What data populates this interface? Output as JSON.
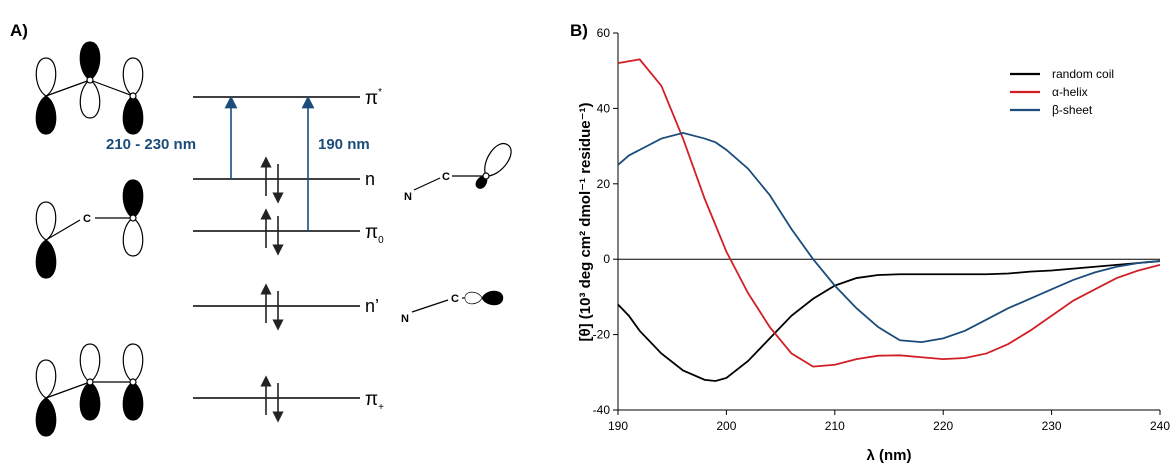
{
  "panel_a": {
    "label": "A)",
    "levels": [
      {
        "symbol": "π",
        "sup": "*"
      },
      {
        "symbol": "n"
      },
      {
        "symbol": "π",
        "sub": "0"
      },
      {
        "symbol": "n’"
      },
      {
        "symbol": "π",
        "sub": "+"
      }
    ],
    "transitions": [
      "210 - 230 nm",
      "190 nm"
    ],
    "atoms": {
      "c_pi0": "C",
      "n_n": "N",
      "c_n": "C",
      "n_nprime": "N",
      "c_nprime": "C"
    }
  },
  "chart_data": {
    "type": "line",
    "title": "B)",
    "x_label": "λ (nm)",
    "y_label": "[θ] (10³ deg cm² dmol⁻¹ residue⁻¹)",
    "x": [
      190,
      191,
      192,
      194,
      196,
      198,
      199,
      200,
      202,
      204,
      206,
      208,
      210,
      212,
      214,
      216,
      218,
      220,
      222,
      224,
      226,
      228,
      230,
      232,
      234,
      236,
      238,
      240
    ],
    "series": [
      {
        "name": "random coil",
        "color": "#000000",
        "values": [
          -12,
          -15,
          -19,
          -25,
          -29.5,
          -32,
          -32.3,
          -31.5,
          -27,
          -21,
          -15,
          -10.5,
          -7,
          -5,
          -4.2,
          -4,
          -4,
          -4,
          -4,
          -4,
          -3.8,
          -3.3,
          -3,
          -2.5,
          -2,
          -1.5,
          -1,
          -0.5
        ]
      },
      {
        "name": "α-helix",
        "color": "#d11f26",
        "values": [
          52,
          52.5,
          53,
          46,
          32,
          16,
          9,
          2,
          -9,
          -18,
          -25,
          -28.5,
          -28,
          -26.5,
          -25.6,
          -25.5,
          -26,
          -26.5,
          -26.2,
          -25,
          -22.5,
          -19,
          -15,
          -11,
          -8,
          -5,
          -3,
          -1.5
        ]
      },
      {
        "name": "β-sheet",
        "color": "#1b4c7a",
        "values": [
          25,
          27.5,
          29,
          32,
          33.5,
          32,
          31,
          29,
          24,
          17,
          8,
          0,
          -7,
          -13,
          -18,
          -21.5,
          -22,
          -21,
          -19,
          -16,
          -13,
          -10.5,
          -8,
          -5.5,
          -3.5,
          -2,
          -1,
          -0.5
        ]
      }
    ],
    "xlim": [
      190,
      240
    ],
    "xticks": [
      190,
      200,
      210,
      220,
      230,
      240
    ],
    "ylim": [
      -40,
      60
    ],
    "yticks": [
      -40,
      -20,
      0,
      20,
      40,
      60
    ],
    "hline": 0,
    "legend": "upper right"
  }
}
